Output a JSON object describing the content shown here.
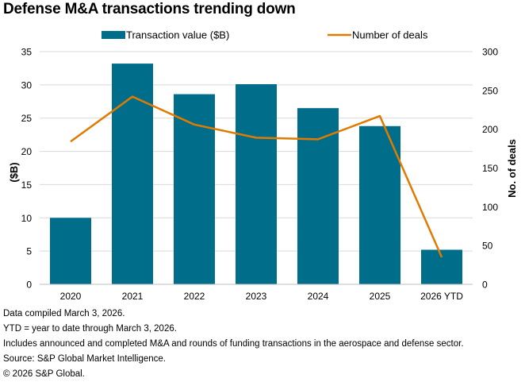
{
  "chart_data": {
    "type": "bar+line",
    "title": "Defense M&A transactions trending down",
    "categories": [
      "2020",
      "2021",
      "2022",
      "2023",
      "2024",
      "2025",
      "2026 YTD"
    ],
    "series": [
      {
        "name": "Transaction value ($B)",
        "type": "bar",
        "axis": "left",
        "color": "#006e8a",
        "values": [
          10.0,
          33.2,
          28.6,
          30.1,
          26.5,
          23.8,
          5.2
        ]
      },
      {
        "name": "Number of deals",
        "type": "line",
        "axis": "right",
        "color": "#e07b00",
        "values": [
          184,
          242,
          206,
          189,
          187,
          217,
          35
        ]
      }
    ],
    "ylabel": "($B)",
    "ylim": [
      0,
      35
    ],
    "yticks": [
      "0",
      "5",
      "10",
      "15",
      "20",
      "25",
      "30",
      "35"
    ],
    "y2label": "No. of deals",
    "y2lim": [
      0,
      300
    ],
    "y2ticks": [
      "0",
      "50",
      "100",
      "150",
      "200",
      "250",
      "300"
    ],
    "grid": true,
    "legend": "top-center"
  },
  "notes": [
    "Data compiled March 3, 2026.",
    "YTD = year to date through March 3, 2026.",
    "Includes announced and completed M&A and rounds of funding transactions in the aerospace and defense sector.",
    "Source: S&P Global Market Intelligence.",
    "© 2026 S&P Global."
  ]
}
